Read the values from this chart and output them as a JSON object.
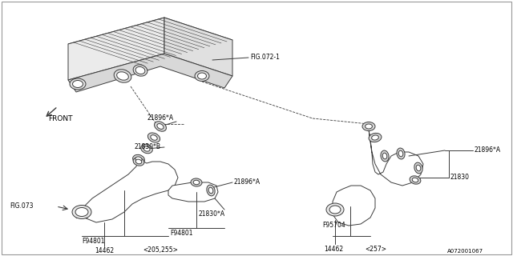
{
  "bg_color": "#ffffff",
  "line_color": "#3a3a3a",
  "fig_id": "A072001067",
  "labels": {
    "fig072": "FIG.072-1",
    "fig073": "FIG.073",
    "front": "FRONT",
    "21896A_1": "21896★A",
    "21830B": "21830★B",
    "F94801_1": "F94801",
    "F94801_2": "F94801",
    "21896A_2": "21896★A",
    "21830A": "21830★A",
    "14462_L": "14462",
    "205255": "〈205,255〉",
    "F95704": "F95704",
    "21896A_R": "21896★A",
    "21830_R": "21830",
    "14462_R": "14462",
    "257": "〈257〉"
  },
  "font_size": 5.5,
  "lw": 0.7
}
